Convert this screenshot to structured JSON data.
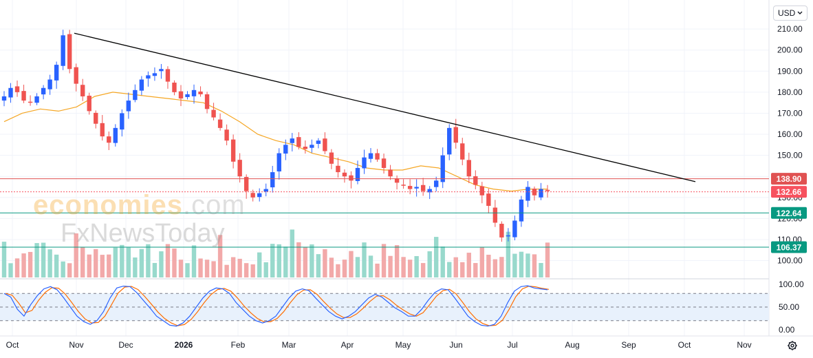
{
  "currency": {
    "label": "USD",
    "chevron": "chevron-down-icon"
  },
  "watermark": {
    "part1": "economies",
    "part2": ".com",
    "line2": "FxNewsToday"
  },
  "settings_icon": "gear-icon",
  "chart_data": {
    "type": "candlestick",
    "price_axis": {
      "range": [
        92,
        212
      ],
      "ticks": [
        "210.00",
        "200.00",
        "190.00",
        "180.00",
        "170.00",
        "160.00",
        "150.00",
        "140.00",
        "130.00",
        "120.00",
        "110.00",
        "100.00"
      ],
      "tick_values": [
        210,
        200,
        190,
        180,
        170,
        160,
        150,
        140,
        130,
        120,
        110,
        100
      ]
    },
    "time_axis": {
      "labels": [
        "Oct",
        "Nov",
        "Dec",
        "2026",
        "Feb",
        "Mar",
        "Apr",
        "May",
        "Jun",
        "Jul",
        "Aug",
        "Sep",
        "Oct",
        "Nov"
      ]
    },
    "price_levels": [
      {
        "value": 138.9,
        "label": "138.90",
        "color": "#e05252",
        "style": "solid"
      },
      {
        "value": 132.66,
        "label": "132.66",
        "color": "#f7525f",
        "style": "dotted"
      },
      {
        "value": 122.64,
        "label": "122.64",
        "color": "#089981",
        "style": "solid"
      },
      {
        "value": 106.37,
        "label": "106.37",
        "color": "#089981",
        "style": "solid"
      }
    ],
    "trendline": {
      "from": [
        "Nov",
        208
      ],
      "to": [
        "Oct",
        137.5
      ],
      "color": "#000000"
    },
    "moving_average": {
      "color": "#f5a623",
      "points": [
        166,
        170,
        172,
        171,
        173,
        178,
        180,
        179,
        178,
        177,
        176,
        175,
        171,
        166,
        160,
        157,
        155,
        151,
        149,
        147,
        144,
        143,
        143,
        145,
        144,
        140,
        136,
        134,
        133,
        134,
        134
      ]
    },
    "close_path": [
      178,
      182,
      180,
      176,
      175,
      178,
      182,
      186,
      193,
      207,
      191,
      184,
      178,
      171,
      165,
      159,
      156,
      163,
      170,
      176,
      181,
      186,
      188,
      189,
      191,
      185,
      180,
      177,
      179,
      181,
      179,
      172,
      168,
      163,
      157,
      147,
      140,
      133,
      130,
      132,
      134,
      142,
      151,
      155,
      158,
      154,
      153,
      155,
      157,
      152,
      146,
      142,
      140,
      138,
      144,
      149,
      151,
      148,
      144,
      140,
      137,
      136,
      134,
      135,
      133,
      134,
      138,
      150,
      163,
      156,
      148,
      140,
      136,
      131,
      126,
      118,
      111,
      112,
      119,
      129,
      135,
      131,
      134,
      133
    ],
    "stochastic": {
      "range": [
        0,
        100
      ],
      "ticks": [
        "100.00",
        "50.00",
        "0.00"
      ],
      "tick_values": [
        100,
        50,
        0
      ],
      "bands": [
        80,
        20
      ],
      "k_color": "#2962ff",
      "d_color": "#ff6d00",
      "k": [
        80,
        72,
        45,
        30,
        55,
        75,
        90,
        95,
        88,
        70,
        50,
        30,
        18,
        12,
        20,
        40,
        70,
        92,
        96,
        95,
        82,
        65,
        48,
        30,
        20,
        10,
        8,
        15,
        30,
        50,
        70,
        85,
        92,
        90,
        80,
        60,
        45,
        30,
        20,
        15,
        20,
        30,
        50,
        70,
        85,
        90,
        86,
        70,
        55,
        40,
        30,
        24,
        30,
        40,
        55,
        70,
        78,
        72,
        60,
        48,
        40,
        30,
        30,
        45,
        65,
        82,
        90,
        88,
        70,
        50,
        30,
        18,
        10,
        8,
        12,
        30,
        60,
        85,
        95,
        97,
        92,
        90,
        88
      ]
    },
    "volume_color_up": "#98d9cc",
    "volume_color_down": "#f2a9a9"
  }
}
